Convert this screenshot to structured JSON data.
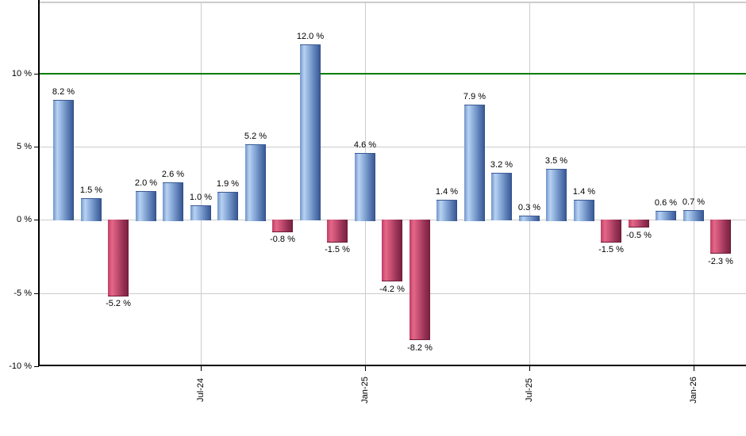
{
  "chart_data": {
    "type": "bar",
    "title": "",
    "xlabel": "",
    "ylabel": "",
    "values": [
      8.2,
      1.5,
      -5.2,
      2.0,
      2.6,
      1.0,
      1.9,
      5.2,
      -0.8,
      12.0,
      -1.5,
      4.6,
      -4.2,
      -8.2,
      1.4,
      7.9,
      3.2,
      0.3,
      3.5,
      1.4,
      -1.5,
      -0.5,
      0.6,
      0.7,
      -2.3
    ],
    "bar_labels": [
      "8.2 %",
      "1.5 %",
      "-5.2 %",
      "2.0 %",
      "2.6 %",
      "1.0 %",
      "1.9 %",
      "5.2 %",
      "-0.8 %",
      "12.0 %",
      "-1.5 %",
      "4.6 %",
      "-4.2 %",
      "-8.2 %",
      "1.4 %",
      "7.9 %",
      "3.2 %",
      "0.3 %",
      "3.5 %",
      "1.4 %",
      "-1.5 %",
      "-0.5 %",
      "0.6 %",
      "0.7 %",
      "-2.3 %"
    ],
    "x_ticks": [
      {
        "label": "Jul-24",
        "bar_index": 5
      },
      {
        "label": "Jan-25",
        "bar_index": 11
      },
      {
        "label": "Jul-25",
        "bar_index": 17
      },
      {
        "label": "Jan-26",
        "bar_index": 23
      }
    ],
    "y_ticks": [
      {
        "label": "10 %",
        "value": 10
      },
      {
        "label": "5 %",
        "value": 5
      },
      {
        "label": "0 %",
        "value": 0
      },
      {
        "label": "-5 %",
        "value": -5
      },
      {
        "label": "-10 %",
        "value": -10
      }
    ],
    "ylim": [
      -10,
      14.93
    ],
    "gridlines_y": [
      5,
      0,
      -5
    ],
    "grid": true,
    "legend": "none",
    "threshold_line": {
      "value": 10,
      "color": "#007d00"
    },
    "colors": {
      "positive_gradient": [
        [
          "#7095c9",
          0
        ],
        [
          "#b8d2f2",
          0.2
        ],
        [
          "#8fb0dd",
          0.42
        ],
        [
          "#5d7fb6",
          0.72
        ],
        [
          "#3a5a96",
          0.96
        ],
        [
          "#2b4779",
          1
        ]
      ],
      "negative_gradient": [
        [
          "#bd3f66",
          0
        ],
        [
          "#e56787",
          0.2
        ],
        [
          "#c44e72",
          0.45
        ],
        [
          "#993356",
          0.72
        ],
        [
          "#7b2242",
          0.96
        ],
        [
          "#641631",
          1
        ]
      ],
      "grid": "#cccccc",
      "axis": "#000000",
      "label": "#000000",
      "background": "#ffffff"
    }
  }
}
